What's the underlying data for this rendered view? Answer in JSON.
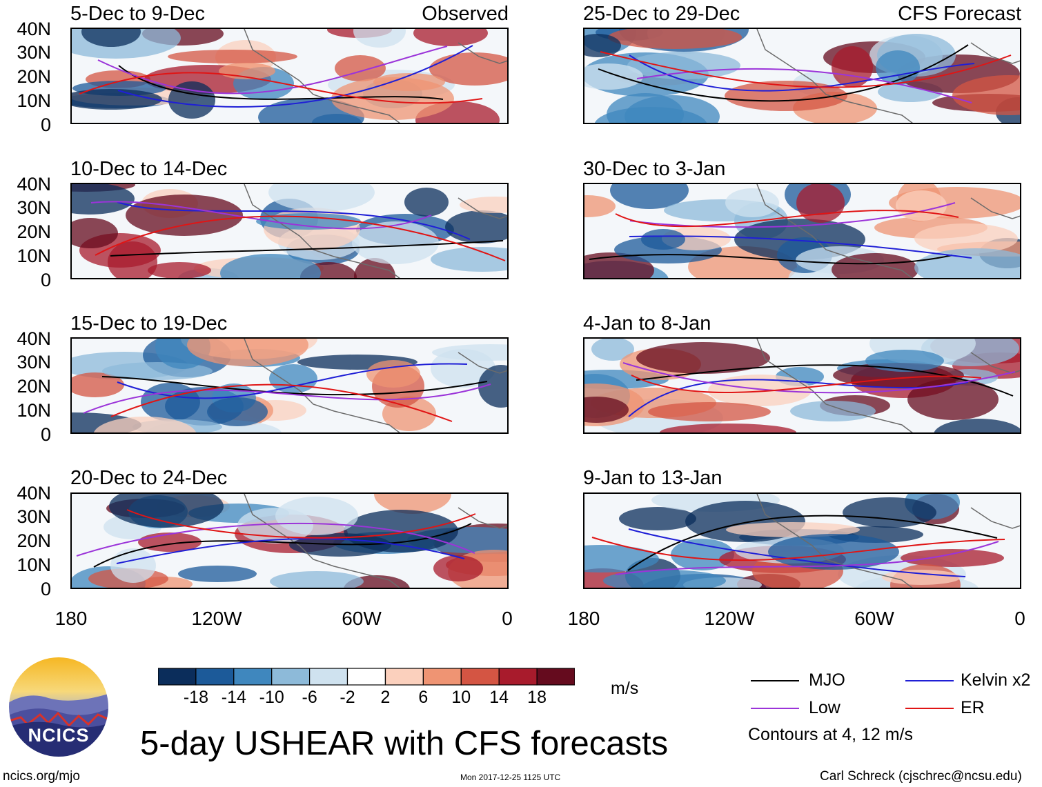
{
  "product_title": "5-day USHEAR with CFS forecasts",
  "observed_label": "Observed",
  "forecast_label": "CFS Forecast",
  "lat_ticks": [
    "40N",
    "30N",
    "20N",
    "10N",
    "0"
  ],
  "lon_ticks": [
    "180",
    "120W",
    "60W",
    "0"
  ],
  "observed_panels": [
    {
      "period": "5-Dec to 9-Dec"
    },
    {
      "period": "10-Dec to 14-Dec"
    },
    {
      "period": "15-Dec to 19-Dec"
    },
    {
      "period": "20-Dec to 24-Dec"
    }
  ],
  "forecast_panels": [
    {
      "period": "25-Dec to 29-Dec"
    },
    {
      "period": "30-Dec to 3-Jan"
    },
    {
      "period": "4-Jan to 8-Jan"
    },
    {
      "period": "9-Jan to 13-Jan"
    }
  ],
  "colorbar": {
    "labels": [
      "-18",
      "-14",
      "-10",
      "-6",
      "-2",
      "2",
      "6",
      "10",
      "14",
      "18"
    ],
    "colors": [
      "#0b2d5b",
      "#1c5a99",
      "#3f87be",
      "#8dbad9",
      "#cfe2ef",
      "#ffffff",
      "#fbd0bd",
      "#ef9473",
      "#d45543",
      "#a81b2c",
      "#650b1e"
    ],
    "units": "m/s"
  },
  "legend": {
    "items": [
      {
        "label": "MJO",
        "color": "#000000"
      },
      {
        "label": "Kelvin x2",
        "color": "#1f1fd6"
      },
      {
        "label": "Low",
        "color": "#9b34d9"
      },
      {
        "label": "ER",
        "color": "#e01515"
      }
    ],
    "note": "Contours at 4, 12 m/s"
  },
  "logo_text": "NCICS",
  "url": "ncics.org/mjo",
  "timestamp": "Mon 2017-12-25 1125 UTC",
  "credit": "Carl Schreck (cjschrec@ncsu.edu)"
}
